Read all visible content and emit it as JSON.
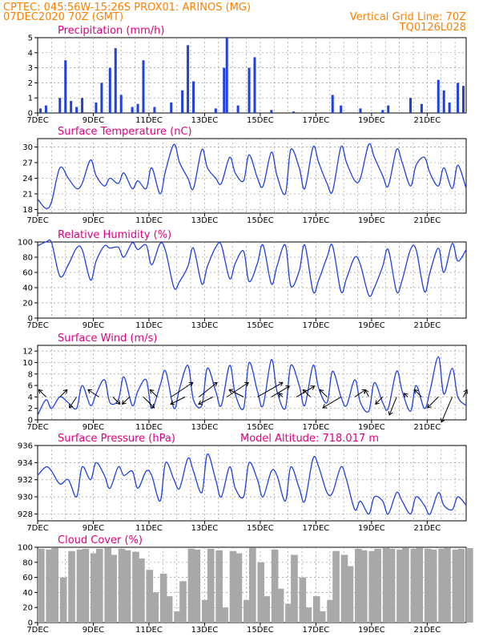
{
  "header": {
    "line1": "CPTEC:   045:56W-15:26S   PROX01: ARINOS (MG)",
    "line2_left": "07DEC2020 70Z (GMT)",
    "line2_right": "Vertical Grid Line: 70Z",
    "line3_right": "TQ0126L028"
  },
  "colors": {
    "header": "#ff8000",
    "title": "#e0007f",
    "series": "#2040e0",
    "cloud": "#a8a8a8",
    "grid": "#999999"
  },
  "chart_data": [
    {
      "type": "bar",
      "title": "Precipitation (mm/h)",
      "yticks": [
        0,
        1,
        2,
        3,
        4,
        5
      ],
      "ylim": [
        0,
        5
      ],
      "xlim_days": [
        7,
        22.4
      ],
      "xticks": [
        "7DEC",
        "9DEC",
        "11DEC",
        "13DEC",
        "15DEC",
        "17DEC",
        "19DEC",
        "21DEC"
      ],
      "x_days": [
        7.1,
        7.3,
        7.8,
        8.0,
        8.2,
        8.4,
        8.6,
        9.1,
        9.3,
        9.6,
        9.8,
        10.0,
        10.4,
        10.6,
        10.8,
        11.2,
        11.8,
        12.2,
        12.4,
        12.6,
        13.4,
        13.7,
        13.8,
        14.2,
        14.6,
        14.8,
        15.4,
        16.2,
        17.6,
        17.9,
        18.6,
        19.4,
        19.6,
        20.4,
        20.8,
        21.4,
        21.6,
        21.8,
        22.1,
        22.3
      ],
      "values": [
        0.3,
        0.5,
        1.0,
        3.5,
        0.8,
        0.4,
        1.0,
        0.7,
        2.0,
        3.0,
        4.3,
        1.2,
        0.4,
        0.6,
        3.5,
        0.4,
        0.7,
        1.5,
        4.5,
        2.1,
        0.3,
        3.0,
        5.0,
        0.5,
        3.0,
        3.7,
        0.2,
        0.1,
        1.2,
        0.5,
        0.3,
        0.2,
        0.5,
        1.0,
        0.6,
        2.2,
        1.5,
        0.7,
        2.0,
        1.8
      ]
    },
    {
      "type": "line",
      "title": "Surface Temperature (nC)",
      "yticks": [
        18,
        21,
        24,
        27,
        30
      ],
      "ylim": [
        17.3,
        31.6
      ],
      "xlim_days": [
        7,
        22.4
      ],
      "xticks": [
        "7DEC",
        "9DEC",
        "11DEC",
        "13DEC",
        "15DEC",
        "17DEC",
        "19DEC",
        "21DEC"
      ],
      "x_days": [
        7.0,
        7.3,
        7.5,
        7.8,
        8.1,
        8.4,
        8.6,
        8.9,
        9.1,
        9.4,
        9.6,
        9.9,
        10.1,
        10.4,
        10.6,
        10.9,
        11.1,
        11.4,
        11.6,
        11.9,
        12.1,
        12.4,
        12.6,
        12.9,
        13.1,
        13.4,
        13.6,
        13.9,
        14.1,
        14.4,
        14.6,
        14.9,
        15.1,
        15.4,
        15.6,
        15.9,
        16.1,
        16.4,
        16.6,
        16.9,
        17.1,
        17.4,
        17.6,
        17.9,
        18.1,
        18.4,
        18.6,
        18.9,
        19.1,
        19.4,
        19.6,
        19.9,
        20.1,
        20.4,
        20.6,
        20.9,
        21.1,
        21.4,
        21.6,
        21.9,
        22.1,
        22.4
      ],
      "values": [
        20.0,
        18.2,
        19.5,
        26.0,
        24.0,
        22.0,
        23.0,
        27.5,
        24.5,
        22.5,
        24.0,
        23.0,
        25.0,
        22.0,
        23.5,
        22.0,
        26.0,
        21.0,
        25.5,
        30.5,
        27.0,
        24.0,
        22.0,
        29.5,
        26.0,
        24.0,
        23.0,
        28.0,
        25.0,
        23.5,
        28.5,
        24.0,
        22.5,
        29.0,
        24.5,
        21.0,
        29.5,
        26.0,
        22.0,
        30.0,
        27.0,
        23.0,
        21.5,
        30.0,
        27.0,
        23.5,
        24.0,
        30.5,
        28.0,
        24.5,
        22.5,
        29.5,
        27.0,
        22.5,
        26.5,
        28.0,
        25.0,
        22.5,
        26.0,
        22.0,
        26.5,
        22.0
      ]
    },
    {
      "type": "line",
      "title": "Relative Humidity (%)",
      "yticks": [
        0,
        20,
        40,
        60,
        80,
        100
      ],
      "ylim": [
        0,
        100
      ],
      "xlim_days": [
        7,
        22.4
      ],
      "xticks": [
        "7DEC",
        "9DEC",
        "11DEC",
        "13DEC",
        "15DEC",
        "17DEC",
        "19DEC",
        "21DEC"
      ],
      "x_days": [
        7.0,
        7.3,
        7.5,
        7.8,
        8.1,
        8.4,
        8.6,
        8.9,
        9.1,
        9.4,
        9.6,
        9.9,
        10.1,
        10.4,
        10.6,
        10.9,
        11.1,
        11.4,
        11.6,
        11.9,
        12.1,
        12.4,
        12.6,
        12.9,
        13.1,
        13.4,
        13.6,
        13.9,
        14.1,
        14.4,
        14.6,
        14.9,
        15.1,
        15.4,
        15.6,
        15.9,
        16.1,
        16.4,
        16.6,
        16.9,
        17.1,
        17.4,
        17.6,
        17.9,
        18.1,
        18.4,
        18.6,
        18.9,
        19.1,
        19.4,
        19.6,
        19.9,
        20.1,
        20.4,
        20.6,
        20.9,
        21.1,
        21.4,
        21.6,
        21.9,
        22.1,
        22.4
      ],
      "values": [
        95,
        100,
        99,
        55,
        70,
        92,
        90,
        50,
        75,
        95,
        92,
        93,
        80,
        99,
        90,
        96,
        70,
        98,
        88,
        40,
        48,
        68,
        92,
        45,
        68,
        93,
        96,
        52,
        72,
        88,
        48,
        72,
        96,
        45,
        68,
        96,
        42,
        62,
        96,
        35,
        50,
        80,
        95,
        35,
        52,
        80,
        70,
        30,
        40,
        68,
        90,
        35,
        50,
        90,
        90,
        35,
        60,
        92,
        60,
        98,
        75,
        90
      ]
    },
    {
      "type": "line",
      "title": "Surface Wind (m/s)",
      "yticks": [
        0,
        2,
        4,
        6,
        8,
        10,
        12
      ],
      "ylim": [
        0,
        13
      ],
      "xlim_days": [
        7,
        22.4
      ],
      "xticks": [
        "7DEC",
        "9DEC",
        "11DEC",
        "13DEC",
        "15DEC",
        "17DEC",
        "19DEC",
        "21DEC"
      ],
      "x_days": [
        7.0,
        7.3,
        7.5,
        7.8,
        8.1,
        8.4,
        8.6,
        8.9,
        9.1,
        9.4,
        9.6,
        9.9,
        10.1,
        10.4,
        10.6,
        10.9,
        11.1,
        11.4,
        11.6,
        11.9,
        12.1,
        12.4,
        12.6,
        12.9,
        13.1,
        13.4,
        13.6,
        13.9,
        14.1,
        14.4,
        14.6,
        14.9,
        15.1,
        15.4,
        15.6,
        15.9,
        16.1,
        16.4,
        16.6,
        16.9,
        17.1,
        17.4,
        17.6,
        17.9,
        18.1,
        18.4,
        18.6,
        18.9,
        19.1,
        19.4,
        19.6,
        19.9,
        20.1,
        20.4,
        20.6,
        20.9,
        21.1,
        21.4,
        21.6,
        21.9,
        22.1,
        22.4
      ],
      "values": [
        0.8,
        3.5,
        2.0,
        4.0,
        3.0,
        2.0,
        6.0,
        2.5,
        4.5,
        7.0,
        3.0,
        3.5,
        7.5,
        2.5,
        5.0,
        7.0,
        2.0,
        6.0,
        8.5,
        2.0,
        5.5,
        9.5,
        3.5,
        2.5,
        9.0,
        5.0,
        2.5,
        9.5,
        4.5,
        2.0,
        10.0,
        5.0,
        2.5,
        10.5,
        5.0,
        2.0,
        9.5,
        6.0,
        2.5,
        9.5,
        5.5,
        3.0,
        8.5,
        4.0,
        2.5,
        7.0,
        3.0,
        1.5,
        6.5,
        3.0,
        2.0,
        8.5,
        5.0,
        1.5,
        6.0,
        2.0,
        5.0,
        11.0,
        4.5,
        9.0,
        4.0,
        2.5
      ],
      "vectors": {
        "x_days": [
          7.3,
          7.8,
          8.4,
          9.2,
          9.7,
          10.3,
          10.8,
          11.3,
          11.8,
          12.3,
          12.8,
          13.3,
          13.8,
          14.4,
          14.9,
          15.4,
          15.8,
          16.3,
          16.8,
          17.4,
          17.9,
          18.4,
          18.9,
          19.4,
          19.9,
          20.3,
          20.8,
          21.4,
          21.9,
          22.3
        ],
        "u": [
          -2,
          2,
          -2,
          -3,
          2,
          -2,
          3,
          -2,
          6,
          -4,
          5,
          -4,
          6,
          -4,
          7,
          5,
          -1,
          5,
          -2,
          -2,
          -5,
          3,
          -1,
          -2,
          -2,
          -1,
          -2,
          -3,
          -3,
          1
        ],
        "v": [
          2,
          2,
          -3,
          2,
          -2,
          -2,
          -3,
          2,
          4,
          -2,
          4,
          -2,
          4,
          2,
          4,
          3,
          1,
          3,
          2,
          2,
          -3,
          2,
          2,
          -2,
          -5,
          1,
          2,
          -3,
          -7,
          2
        ]
      }
    },
    {
      "type": "line",
      "title": "Surface Pressure (hPa)",
      "annotation": "Model Altitude: 718.017 m",
      "yticks": [
        928,
        930,
        932,
        934,
        936
      ],
      "ylim": [
        927.2,
        936
      ],
      "xlim_days": [
        7,
        22.4
      ],
      "xticks": [
        "7DEC",
        "9DEC",
        "11DEC",
        "13DEC",
        "15DEC",
        "17DEC",
        "19DEC",
        "21DEC"
      ],
      "x_days": [
        7.0,
        7.3,
        7.5,
        7.8,
        8.1,
        8.4,
        8.6,
        8.9,
        9.1,
        9.4,
        9.6,
        9.9,
        10.1,
        10.4,
        10.6,
        10.9,
        11.1,
        11.4,
        11.6,
        11.9,
        12.1,
        12.4,
        12.6,
        12.9,
        13.1,
        13.4,
        13.6,
        13.9,
        14.1,
        14.4,
        14.6,
        14.9,
        15.1,
        15.4,
        15.6,
        15.9,
        16.1,
        16.4,
        16.6,
        16.9,
        17.1,
        17.4,
        17.6,
        17.9,
        18.1,
        18.4,
        18.6,
        18.9,
        19.1,
        19.4,
        19.6,
        19.9,
        20.1,
        20.4,
        20.6,
        20.9,
        21.1,
        21.4,
        21.6,
        21.9,
        22.1,
        22.4
      ],
      "values": [
        932.5,
        933.5,
        933.0,
        931.5,
        932.0,
        930.0,
        933.5,
        932.0,
        934.0,
        932.5,
        931.0,
        933.5,
        932.5,
        933.0,
        931.0,
        933.0,
        932.5,
        929.5,
        934.0,
        932.0,
        931.0,
        934.5,
        933.0,
        930.5,
        935.0,
        932.0,
        930.0,
        933.5,
        931.0,
        930.0,
        934.0,
        932.0,
        930.0,
        933.0,
        932.5,
        929.5,
        933.5,
        931.0,
        929.5,
        934.5,
        933.5,
        930.5,
        930.5,
        933.5,
        932.0,
        928.5,
        929.5,
        928.0,
        930.0,
        929.5,
        928.0,
        930.5,
        929.5,
        928.0,
        930.0,
        929.0,
        928.0,
        930.5,
        929.0,
        928.5,
        930.0,
        929.0
      ]
    },
    {
      "type": "bar",
      "title": "Cloud Cover (%)",
      "yticks": [
        0,
        20,
        40,
        60,
        80,
        100
      ],
      "ylim": [
        0,
        100
      ],
      "xlim_days": [
        7,
        22.4
      ],
      "xticks": [
        "7DEC",
        "9DEC",
        "11DEC",
        "13DEC",
        "15DEC",
        "17DEC",
        "19DEC",
        "21DEC"
      ],
      "x_days": [
        7.0,
        7.3,
        7.5,
        7.8,
        8.1,
        8.4,
        8.6,
        8.9,
        9.1,
        9.4,
        9.6,
        9.9,
        10.1,
        10.4,
        10.6,
        10.9,
        11.1,
        11.4,
        11.6,
        11.9,
        12.1,
        12.4,
        12.6,
        12.9,
        13.1,
        13.4,
        13.6,
        13.9,
        14.1,
        14.4,
        14.6,
        14.9,
        15.1,
        15.4,
        15.6,
        15.9,
        16.1,
        16.4,
        16.6,
        16.9,
        17.1,
        17.4,
        17.6,
        17.9,
        18.1,
        18.4,
        18.6,
        18.9,
        19.1,
        19.4,
        19.6,
        19.9,
        20.1,
        20.4,
        20.6,
        20.9,
        21.1,
        21.4,
        21.6,
        21.9,
        22.1,
        22.4
      ],
      "values": [
        98,
        97,
        99,
        60,
        95,
        97,
        98,
        92,
        98,
        99,
        90,
        98,
        96,
        94,
        85,
        70,
        40,
        65,
        35,
        15,
        55,
        98,
        97,
        30,
        98,
        96,
        20,
        95,
        92,
        30,
        99,
        80,
        35,
        97,
        45,
        25,
        90,
        60,
        20,
        35,
        15,
        30,
        95,
        90,
        75,
        98,
        96,
        95,
        98,
        99,
        98,
        97,
        99,
        98,
        99,
        98,
        97,
        98,
        99,
        97,
        98,
        99
      ]
    }
  ]
}
